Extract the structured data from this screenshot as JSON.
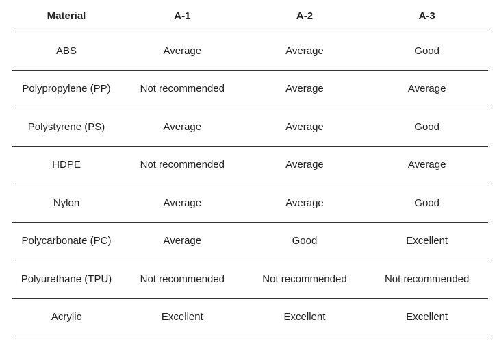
{
  "table": {
    "header": [
      "Material",
      "A-1",
      "A-2",
      "A-3"
    ],
    "rows": [
      [
        "ABS",
        "Average",
        "Average",
        "Good"
      ],
      [
        "Polypropylene (PP)",
        "Not recommended",
        "Average",
        "Average"
      ],
      [
        "Polystyrene (PS)",
        "Average",
        "Average",
        "Good"
      ],
      [
        "HDPE",
        "Not recommended",
        "Average",
        "Average"
      ],
      [
        "Nylon",
        "Average",
        "Average",
        "Good"
      ],
      [
        "Polycarbonate (PC)",
        "Average",
        "Good",
        "Excellent"
      ],
      [
        "Polyurethane (TPU)",
        "Not recommended",
        "Not recommended",
        "Not recommended"
      ],
      [
        "Acrylic",
        "Excellent",
        "Excellent",
        "Excellent"
      ]
    ]
  }
}
